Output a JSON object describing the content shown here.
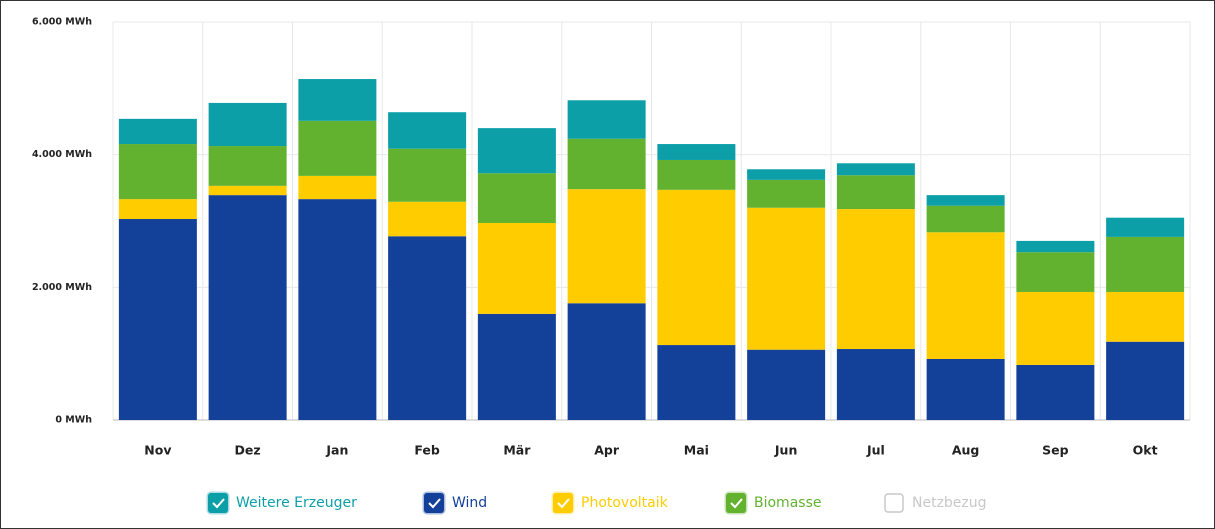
{
  "chart_data": {
    "type": "stacked_bar",
    "categories": [
      "Nov",
      "Dez",
      "Jan",
      "Feb",
      "Mär",
      "Apr",
      "Mai",
      "Jun",
      "Jul",
      "Aug",
      "Sep",
      "Okt"
    ],
    "series": [
      {
        "name": "Weitere Erzeuger",
        "color": "#0c9fa8",
        "enabled": true,
        "values": [
          380,
          650,
          630,
          550,
          680,
          580,
          240,
          160,
          180,
          160,
          170,
          290
        ]
      },
      {
        "name": "Wind",
        "color": "#13419a",
        "enabled": true,
        "values": [
          3030,
          3390,
          3330,
          2770,
          1600,
          1760,
          1130,
          1060,
          1070,
          920,
          830,
          1180
        ]
      },
      {
        "name": "Photovoltaik",
        "color": "#ffcc00",
        "enabled": true,
        "values": [
          300,
          140,
          350,
          520,
          1370,
          1720,
          2340,
          2140,
          2110,
          1910,
          1100,
          750
        ]
      },
      {
        "name": "Biomasse",
        "color": "#62b22f",
        "enabled": true,
        "values": [
          830,
          600,
          830,
          800,
          750,
          760,
          450,
          420,
          510,
          400,
          600,
          830
        ]
      },
      {
        "name": "Netzbezug",
        "color": "#c8c8c8",
        "enabled": false,
        "values": [
          null,
          null,
          null,
          null,
          null,
          null,
          null,
          null,
          null,
          null,
          null,
          null
        ]
      }
    ],
    "ylim": [
      0,
      6000
    ],
    "yticks": [
      {
        "value": 0,
        "label": "0 MWh"
      },
      {
        "value": 2000,
        "label": "2.000 MWh"
      },
      {
        "value": 4000,
        "label": "4.000 MWh"
      },
      {
        "value": 6000,
        "label": "6.000 MWh"
      }
    ],
    "grid": true
  }
}
